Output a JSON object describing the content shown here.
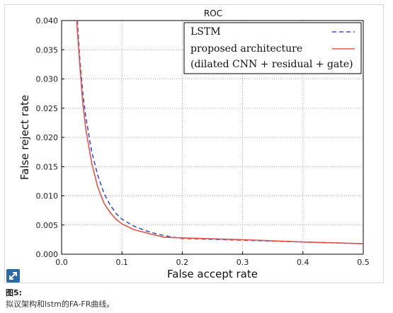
{
  "chart_data": {
    "type": "line",
    "title": "ROC",
    "xlabel": "False accept rate",
    "ylabel": "False reject rate",
    "xlim": [
      0.0,
      0.5
    ],
    "ylim": [
      0.0,
      0.04
    ],
    "xticks": [
      "0.0",
      "0.1",
      "0.2",
      "0.3",
      "0.4",
      "0.5"
    ],
    "yticks": [
      "0.000",
      "0.005",
      "0.010",
      "0.015",
      "0.020",
      "0.025",
      "0.030",
      "0.035",
      "0.040"
    ],
    "grid": true,
    "legend_position": "top-right",
    "legend": {
      "line1": "LSTM",
      "line2": "proposed architecture",
      "line3": "(dilated CNN + residual + gate)"
    },
    "series": [
      {
        "name": "LSTM",
        "style": "dashed",
        "color": "#3b4fd8",
        "x": [
          0.026,
          0.03,
          0.035,
          0.04,
          0.05,
          0.06,
          0.07,
          0.08,
          0.09,
          0.1,
          0.12,
          0.14,
          0.16,
          0.18,
          0.2,
          0.3,
          0.4,
          0.5
        ],
        "y": [
          0.04,
          0.0335,
          0.0278,
          0.0235,
          0.0175,
          0.0135,
          0.0105,
          0.0085,
          0.007,
          0.006,
          0.0048,
          0.004,
          0.0034,
          0.003,
          0.0027,
          0.0024,
          0.0021,
          0.0018
        ]
      },
      {
        "name": "proposed architecture",
        "style": "solid",
        "color": "#e8534a",
        "x": [
          0.025,
          0.03,
          0.035,
          0.04,
          0.05,
          0.06,
          0.07,
          0.08,
          0.09,
          0.1,
          0.12,
          0.15,
          0.17,
          0.2,
          0.3,
          0.4,
          0.5
        ],
        "y": [
          0.04,
          0.0325,
          0.026,
          0.0215,
          0.0155,
          0.0115,
          0.0088,
          0.0072,
          0.006,
          0.0052,
          0.0042,
          0.0034,
          0.0029,
          0.0028,
          0.0025,
          0.0021,
          0.0018
        ]
      }
    ]
  },
  "caption": {
    "title": "图5:",
    "text": "拟议架构和lstm的FA-FR曲线。"
  },
  "icons": {
    "expand": "expand-icon"
  }
}
